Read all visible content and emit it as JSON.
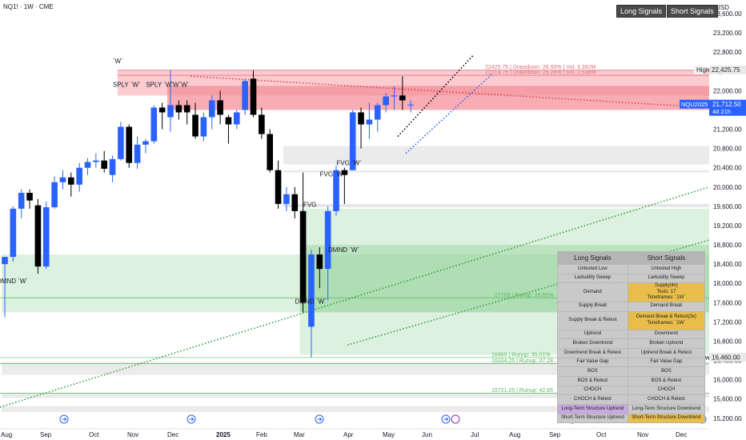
{
  "header": {
    "symbol": "NQ1! · 1W · CME",
    "currency": "USD",
    "buttons": [
      "Long Signals",
      "Short Signals"
    ]
  },
  "price_labels": {
    "high_label": "High",
    "high_value": "22,425.75",
    "low_label": "Low",
    "low_value": "16,460.00",
    "symbol_label": "NQU2025",
    "symbol_price": "21,712.50",
    "countdown": "4d 21h"
  },
  "chart_data": {
    "type": "candlestick",
    "y_axis": {
      "range": [
        15080,
        23850
      ],
      "ticks": [
        15200,
        15600,
        16000,
        16400,
        16800,
        17200,
        17600,
        18000,
        18400,
        18800,
        19200,
        19600,
        20000,
        20400,
        20800,
        21200,
        21600,
        22000,
        22400,
        22800,
        23200,
        23600
      ],
      "tick_labels": [
        "15,200.00",
        "15,600.00",
        "16,000.00",
        "16,400.00",
        "16,800.00",
        "17,200.00",
        "17,600.00",
        "18,000.00",
        "18,400.00",
        "18,800.00",
        "19,200.00",
        "19,600.00",
        "20,000.00",
        "20,400.00",
        "20,800.00",
        "21,200.00",
        "21,600.00",
        "22,000.00",
        "22,400.00",
        "22,800.00",
        "23,200.00",
        "23,600.00"
      ]
    },
    "x_axis": {
      "labels": [
        "Aug",
        "Sep",
        "Oct",
        "Nov",
        "Dec",
        "2025",
        "Feb",
        "Mar",
        "Apr",
        "May",
        "Jun",
        "Jul",
        "Aug",
        "Sep",
        "Oct",
        "Nov",
        "Dec"
      ],
      "bold": [
        "2025"
      ]
    },
    "candles": [
      {
        "o": 18400,
        "h": 18500,
        "l": 17300,
        "c": 18550
      },
      {
        "o": 18550,
        "h": 19600,
        "l": 18450,
        "c": 19550
      },
      {
        "o": 19550,
        "h": 19950,
        "l": 19350,
        "c": 19880
      },
      {
        "o": 19880,
        "h": 19950,
        "l": 19550,
        "c": 19720
      },
      {
        "o": 19620,
        "h": 19750,
        "l": 18200,
        "c": 18350
      },
      {
        "o": 18350,
        "h": 19700,
        "l": 18300,
        "c": 19580
      },
      {
        "o": 19580,
        "h": 20220,
        "l": 19550,
        "c": 20100
      },
      {
        "o": 20100,
        "h": 20350,
        "l": 19950,
        "c": 20200
      },
      {
        "o": 20200,
        "h": 20300,
        "l": 19800,
        "c": 20050
      },
      {
        "o": 20050,
        "h": 20500,
        "l": 19900,
        "c": 20400
      },
      {
        "o": 20400,
        "h": 20600,
        "l": 20250,
        "c": 20520
      },
      {
        "o": 20520,
        "h": 20700,
        "l": 20400,
        "c": 20550
      },
      {
        "o": 20550,
        "h": 20750,
        "l": 20300,
        "c": 20380
      },
      {
        "o": 20250,
        "h": 20650,
        "l": 20100,
        "c": 20580
      },
      {
        "o": 20580,
        "h": 21350,
        "l": 20550,
        "c": 21250
      },
      {
        "o": 21250,
        "h": 21300,
        "l": 20400,
        "c": 20500
      },
      {
        "o": 20500,
        "h": 21050,
        "l": 20380,
        "c": 20880
      },
      {
        "o": 20880,
        "h": 21000,
        "l": 20700,
        "c": 20950
      },
      {
        "o": 20950,
        "h": 21700,
        "l": 20900,
        "c": 21650
      },
      {
        "o": 21650,
        "h": 21750,
        "l": 21200,
        "c": 21550
      },
      {
        "o": 21450,
        "h": 22430,
        "l": 21150,
        "c": 21700
      },
      {
        "o": 21700,
        "h": 21800,
        "l": 21400,
        "c": 21550
      },
      {
        "o": 21700,
        "h": 21800,
        "l": 21300,
        "c": 21550
      },
      {
        "o": 21500,
        "h": 21750,
        "l": 21000,
        "c": 21050
      },
      {
        "o": 21050,
        "h": 21550,
        "l": 20950,
        "c": 21450
      },
      {
        "o": 21450,
        "h": 21900,
        "l": 21200,
        "c": 21800
      },
      {
        "o": 21800,
        "h": 22000,
        "l": 21300,
        "c": 21500
      },
      {
        "o": 21450,
        "h": 21500,
        "l": 20900,
        "c": 21300
      },
      {
        "o": 21300,
        "h": 21600,
        "l": 21200,
        "c": 21550
      },
      {
        "o": 21600,
        "h": 22250,
        "l": 21500,
        "c": 22200
      },
      {
        "o": 22250,
        "h": 22420,
        "l": 21450,
        "c": 21500
      },
      {
        "o": 21500,
        "h": 21650,
        "l": 21000,
        "c": 21100
      },
      {
        "o": 21100,
        "h": 21200,
        "l": 20300,
        "c": 20350
      },
      {
        "o": 20350,
        "h": 20550,
        "l": 19550,
        "c": 19650
      },
      {
        "o": 19650,
        "h": 20000,
        "l": 19500,
        "c": 19850
      },
      {
        "o": 19850,
        "h": 20000,
        "l": 19350,
        "c": 19500
      },
      {
        "o": 19500,
        "h": 20300,
        "l": 17400,
        "c": 17600
      },
      {
        "o": 17100,
        "h": 18700,
        "l": 16460,
        "c": 18600
      },
      {
        "o": 18600,
        "h": 18750,
        "l": 17900,
        "c": 18300
      },
      {
        "o": 18300,
        "h": 19600,
        "l": 17650,
        "c": 19500
      },
      {
        "o": 19500,
        "h": 20450,
        "l": 19400,
        "c": 20350
      },
      {
        "o": 20350,
        "h": 20400,
        "l": 19650,
        "c": 20250
      },
      {
        "o": 20350,
        "h": 21600,
        "l": 20350,
        "c": 21550
      },
      {
        "o": 21550,
        "h": 21650,
        "l": 20800,
        "c": 21300
      },
      {
        "o": 21300,
        "h": 21750,
        "l": 21000,
        "c": 21400
      },
      {
        "o": 21400,
        "h": 21750,
        "l": 21150,
        "c": 21700
      },
      {
        "o": 21700,
        "h": 21950,
        "l": 21550,
        "c": 21880
      },
      {
        "o": 21880,
        "h": 22100,
        "l": 21600,
        "c": 21900
      },
      {
        "o": 21900,
        "h": 22300,
        "l": 21600,
        "c": 21800
      },
      {
        "o": 21700,
        "h": 21800,
        "l": 21550,
        "c": 21712
      }
    ],
    "zones": [
      {
        "kind": "supply",
        "top": 22425,
        "bottom": 21900,
        "from": 14,
        "label": "SPLY `W`"
      },
      {
        "kind": "supply-strong",
        "top": 22100,
        "bottom": 21600,
        "from": 20
      },
      {
        "kind": "neutral",
        "top": 20850,
        "bottom": 20470,
        "from": 34
      },
      {
        "kind": "neutral",
        "top": 20350,
        "bottom": 20300,
        "from": 34
      },
      {
        "kind": "fvg",
        "top": 19650,
        "bottom": 19580,
        "from": 34
      },
      {
        "kind": "demand",
        "top": 19550,
        "bottom": 16520,
        "from": 36
      },
      {
        "kind": "demand",
        "top": 18600,
        "bottom": 17400,
        "from": 0,
        "label": "DMND `W`"
      },
      {
        "kind": "demand-strong",
        "top": 18800,
        "bottom": 17400,
        "from": 36
      },
      {
        "kind": "neutral",
        "top": 16370,
        "bottom": 16100,
        "from": 0
      },
      {
        "kind": "neutral",
        "top": 15720,
        "bottom": 15620,
        "from": 0
      },
      {
        "kind": "neutral",
        "top": 15450,
        "bottom": 15330,
        "from": 0
      }
    ],
    "levels": [
      {
        "price": 22425.75,
        "label": "22425.75 | Drawdown: 26.60% | Vol: 3.392M"
      },
      {
        "price": 22319.75,
        "label": "22319.75 | Drawdown: 26.26% | Vol: 2.538M"
      },
      {
        "price": 17700,
        "label": "17700 | Runup: 25.65%"
      },
      {
        "price": 16460,
        "label": "16460 | Runup: 35.01%"
      },
      {
        "price": 16334.25,
        "label": "16334.25 | Runup: 37.28"
      },
      {
        "price": 15721.25,
        "label": "15721.25 | Runup: 42.65"
      }
    ],
    "annotations": [
      {
        "text": "`W`",
        "i": 14,
        "price": 22570
      },
      {
        "text": "SPLY `W`",
        "i": 14,
        "price": 22080
      },
      {
        "text": "SPLY `W`",
        "i": 18,
        "price": 22080
      },
      {
        "text": "`W`",
        "i": 22,
        "price": 22080
      },
      {
        "text": "`W`",
        "i": 21,
        "price": 22080
      },
      {
        "text": "DMND `W`",
        "i": 0,
        "price": 18000
      },
      {
        "text": "DMND `W`",
        "i": 40,
        "price": 18650
      },
      {
        "text": "DMND `W`",
        "i": 36,
        "price": 17580
      },
      {
        "text": "FVG `W`",
        "i": 41,
        "price": 20450
      },
      {
        "text": "FVG `W`",
        "i": 39,
        "price": 20220
      },
      {
        "text": "FVG",
        "i": 37,
        "price": 19590
      }
    ]
  },
  "signals_table": {
    "headers": [
      "Long Signals",
      "Short Signals"
    ],
    "rows": [
      [
        "Untested Low",
        "Untested High"
      ],
      [
        "Larkuidity Sweep",
        "Larkuidity Sweep"
      ],
      [
        "Demand",
        "Supply(4x)\nTests: 17\nTimeframes: `1W`"
      ],
      [
        "Supply Break",
        "Demand Break"
      ],
      [
        "Supply Break & Retest",
        "Demand Break & Retest(3x)\nTimeframes: `1W`"
      ],
      [
        "Uptrend",
        "Downtrend"
      ],
      [
        "Broken Downtrend",
        "Broken Uptrend"
      ],
      [
        "Downtrend Break & Retest",
        "Uptrend Break & Retest"
      ],
      [
        "Fair Value Gap",
        "Fair Value Gap"
      ],
      [
        "BOS",
        "BOS"
      ],
      [
        "BOS & Retest",
        "BOS & Retest"
      ],
      [
        "CHOCH",
        "CHOCH"
      ],
      [
        "CHOCH & Retest",
        "CHOCH & Retest"
      ],
      [
        "Long-Term Structure Uptrend",
        "Long-Term Structure Downtrend"
      ],
      [
        "Short-Term Structure Uptrend",
        "Short-Term Structure Downtrend"
      ]
    ]
  },
  "colors": {
    "up": "#2962ff",
    "down": "#000000",
    "supply": "#f7a1a8",
    "demand": "#a8dcae",
    "neutral": "#e3e3e3",
    "highlight": "#e8bd4a",
    "purple": "#c7a8e0"
  }
}
